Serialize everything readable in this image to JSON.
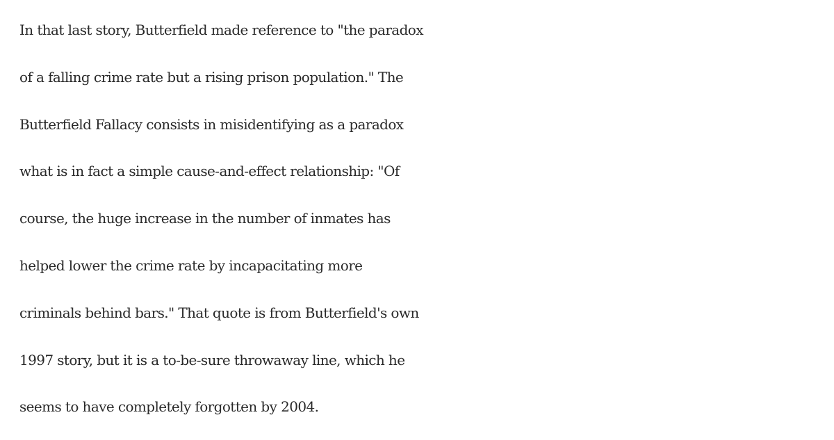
{
  "article": {
    "paragraph_lines": [
      "In that last story, Butterfield made reference to \"the paradox",
      "of a falling crime rate but a rising prison population.\" The",
      "Butterfield Fallacy consists in misidentifying as a paradox",
      "what is in fact a simple cause-and-effect relationship: \"Of",
      "course, the huge increase in the number of inmates has",
      "helped lower the crime rate by incapacitating more",
      "criminals behind bars.\" That quote is from Butterfield's own",
      "1997 story, but it is a to-be-sure throwaway line, which he",
      "seems to have completely forgotten by 2004."
    ]
  }
}
